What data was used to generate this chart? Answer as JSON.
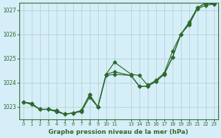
{
  "title": "Graphe pression niveau de la mer (hPa)",
  "bg_color": "#d6eef8",
  "line_color": "#2d6a2d",
  "grid_color": "#aacccc",
  "x_values": [
    0,
    1,
    2,
    3,
    4,
    5,
    6,
    7,
    8,
    9,
    10,
    11,
    13,
    14,
    15,
    16,
    17,
    18,
    19,
    20,
    21,
    22,
    23
  ],
  "ylim": [
    1022.5,
    1027.3
  ],
  "yticks": [
    1023,
    1024,
    1025,
    1026,
    1027
  ],
  "series1": [
    1023.2,
    1023.1,
    1022.9,
    1022.9,
    1022.8,
    1022.7,
    1022.75,
    1022.8,
    1023.4,
    1023.0,
    1024.3,
    1024.35,
    1024.3,
    1023.85,
    1023.85,
    1024.05,
    1024.35,
    1025.05,
    1026.0,
    1026.4,
    1027.05,
    1027.2,
    1027.25
  ],
  "series2": [
    1023.2,
    1023.15,
    1022.9,
    1022.9,
    1022.85,
    1022.7,
    1022.75,
    1022.85,
    1023.5,
    1023.0,
    1024.35,
    1024.85,
    1024.35,
    1024.3,
    1023.9,
    1024.1,
    1024.4,
    1025.3,
    1026.0,
    1026.5,
    1027.1,
    1027.3,
    1027.28
  ],
  "series3": [
    1023.2,
    1023.15,
    1022.9,
    1022.9,
    1022.85,
    1022.7,
    1022.75,
    1022.85,
    1023.5,
    1023.0,
    1024.35,
    1024.45,
    1024.3,
    1023.85,
    1023.85,
    1024.05,
    1024.35,
    1025.05,
    1026.0,
    1026.45,
    1027.1,
    1027.28,
    1027.26
  ]
}
